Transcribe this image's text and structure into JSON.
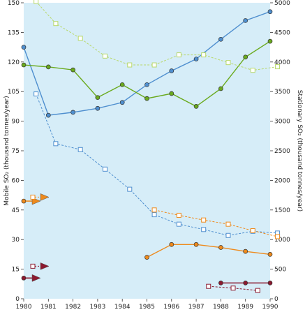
{
  "chart_data": {
    "type": "line",
    "x": [
      1980,
      1981,
      1982,
      1983,
      1984,
      1985,
      1986,
      1987,
      1988,
      1989,
      1990
    ],
    "ylabel_left": "Mobile SO₂ (thousand tonnes/year)",
    "ylabel_right": "Stationary SO₂ (thousand tonnes/year)",
    "ylim_left": [
      0,
      150
    ],
    "ylim_right": [
      0,
      5000
    ],
    "yticks_left": [
      "0",
      "15",
      "30",
      "45",
      "60",
      "75",
      "90",
      "105",
      "120",
      "135",
      "150"
    ],
    "yticks_right": [
      "0",
      "500",
      "1000",
      "1500",
      "2000",
      "2500",
      "3000",
      "3500",
      "4000",
      "4500",
      "5000"
    ],
    "grid": false,
    "colors": {
      "background": "#d6edf8",
      "blue": "#4f8fcf",
      "green": "#6aaa1e",
      "light_green": "#b8d86a",
      "orange": "#ee8a1c",
      "dark_red": "#8b1a30"
    },
    "series": [
      {
        "axis": "left",
        "style": "solid",
        "marker": "circle",
        "color": "#4f8fcf",
        "points": [
          [
            1980,
            127.5
          ],
          [
            1981,
            93
          ],
          [
            1982,
            94.5
          ],
          [
            1983,
            96.5
          ],
          [
            1984,
            99.5
          ],
          [
            1985,
            108.5
          ],
          [
            1986,
            115.5
          ],
          [
            1987,
            121.5
          ],
          [
            1988,
            131.5
          ],
          [
            1989,
            141
          ],
          [
            1990,
            145.5
          ]
        ]
      },
      {
        "axis": "right",
        "style": "dashed",
        "marker": "square",
        "color": "#4f8fcf",
        "points": [
          [
            1980.5,
            3460
          ],
          [
            1981.3,
            2620
          ],
          [
            1982.3,
            2520
          ],
          [
            1983.3,
            2190
          ],
          [
            1984.3,
            1850
          ],
          [
            1985.3,
            1420
          ],
          [
            1986.3,
            1260
          ],
          [
            1987.3,
            1170
          ],
          [
            1988.3,
            1070
          ],
          [
            1989.3,
            1140
          ],
          [
            1990.3,
            1110
          ]
        ]
      },
      {
        "axis": "left",
        "style": "solid",
        "marker": "circle",
        "color": "#6aaa1e",
        "points": [
          [
            1980,
            118.5
          ],
          [
            1981,
            117.5
          ],
          [
            1982,
            116
          ],
          [
            1983,
            102
          ],
          [
            1984,
            108.5
          ],
          [
            1985,
            101.5
          ],
          [
            1986,
            104
          ],
          [
            1987,
            97.5
          ],
          [
            1988,
            106.5
          ],
          [
            1989,
            122.5
          ],
          [
            1990,
            130.5
          ]
        ]
      },
      {
        "axis": "right",
        "style": "dashed",
        "marker": "square",
        "color": "#b8d86a",
        "points": [
          [
            1980.5,
            5100
          ],
          [
            1981.3,
            4650
          ],
          [
            1982.3,
            4400
          ],
          [
            1983.3,
            4100
          ],
          [
            1984.3,
            3950
          ],
          [
            1985.3,
            3950
          ],
          [
            1986.3,
            4120
          ],
          [
            1987.3,
            4120
          ],
          [
            1988.3,
            3990
          ],
          [
            1989.3,
            3860
          ],
          [
            1990.3,
            3920
          ]
        ]
      },
      {
        "axis": "left",
        "style": "solid",
        "marker": "circle",
        "color": "#ee8a1c",
        "points": [
          [
            1985,
            21
          ],
          [
            1986,
            27.5
          ],
          [
            1987,
            27.5
          ],
          [
            1988,
            26
          ],
          [
            1989,
            24
          ],
          [
            1990,
            22.5
          ]
        ]
      },
      {
        "axis": "right",
        "style": "dashed",
        "marker": "square",
        "color": "#ee8a1c",
        "points": [
          [
            1985.3,
            1500
          ],
          [
            1986.3,
            1410
          ],
          [
            1987.3,
            1330
          ],
          [
            1988.3,
            1260
          ],
          [
            1989.3,
            1150
          ],
          [
            1990.3,
            1050
          ]
        ]
      },
      {
        "axis": "left",
        "style": "solid",
        "marker": "circle",
        "color": "#8b1a30",
        "points": [
          [
            1988,
            8
          ],
          [
            1989,
            8
          ],
          [
            1990,
            8
          ]
        ]
      },
      {
        "axis": "right",
        "style": "dashed",
        "marker": "square",
        "color": "#8b1a30",
        "points": [
          [
            1987.5,
            210
          ],
          [
            1988.5,
            180
          ],
          [
            1989.5,
            140
          ]
        ]
      }
    ],
    "arrows": [
      {
        "color": "#ee8a1c",
        "axis": "left",
        "value": 49.5,
        "with_square": false
      },
      {
        "color": "#ee8a1c",
        "axis": "left",
        "value": 51.5,
        "with_square": true
      },
      {
        "color": "#8b1a30",
        "axis": "left",
        "value": 16.5,
        "with_square": true
      },
      {
        "color": "#8b1a30",
        "axis": "left",
        "value": 10.5,
        "with_square": false
      }
    ]
  }
}
